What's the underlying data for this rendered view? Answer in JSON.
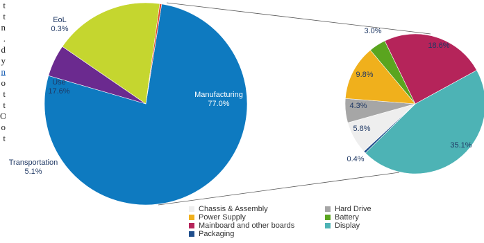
{
  "left_text_fragments": [
    "t",
    "t",
    "n",
    ".",
    "d",
    "y",
    "n",
    "o",
    "t",
    "t",
    "O",
    "o",
    "t"
  ],
  "chart_data": [
    {
      "type": "pie",
      "slices": [
        {
          "label": "Manufacturing",
          "value": 77.0,
          "display": "77.0%",
          "color": "#0e7ac0"
        },
        {
          "label": "Transportation",
          "value": 5.1,
          "display": "5.1%",
          "color": "#6b2a8f"
        },
        {
          "label": "Use",
          "value": 17.6,
          "display": "17.6%",
          "color": "#c5d62f"
        },
        {
          "label": "EoL",
          "value": 0.3,
          "display": "0.3%",
          "color": "#e0442a"
        }
      ]
    },
    {
      "type": "pie",
      "slices": [
        {
          "label": "Display",
          "value": 35.1,
          "display": "35.1%",
          "color": "#4db3b5"
        },
        {
          "label": "Packaging",
          "value": 0.4,
          "display": "0.4%",
          "color": "#1f4e8c"
        },
        {
          "label": "Chassis & Assembly",
          "value": 5.8,
          "display": "5.8%",
          "color": "#eeeeee"
        },
        {
          "label": "Hard Drive",
          "value": 4.3,
          "display": "4.3%",
          "color": "#a6a6a6"
        },
        {
          "label": "Power Supply",
          "value": 9.8,
          "display": "9.8%",
          "color": "#f0b01c"
        },
        {
          "label": "Battery",
          "value": 3.0,
          "display": "3.0%",
          "color": "#5aa51f"
        },
        {
          "label": "Mainboard and other boards",
          "value": 18.6,
          "display": "18.6%",
          "color": "#b5245a"
        }
      ]
    }
  ],
  "legend": {
    "items": [
      {
        "label": "Chassis & Assembly",
        "color": "#eeeeee"
      },
      {
        "label": "Hard Drive",
        "color": "#a6a6a6"
      },
      {
        "label": "Power Supply",
        "color": "#f0b01c"
      },
      {
        "label": "Battery",
        "color": "#5aa51f"
      },
      {
        "label": "Mainboard and other boards",
        "color": "#b5245a"
      },
      {
        "label": "Display",
        "color": "#4db3b5"
      },
      {
        "label": "Packaging",
        "color": "#1f4e8c"
      }
    ]
  }
}
